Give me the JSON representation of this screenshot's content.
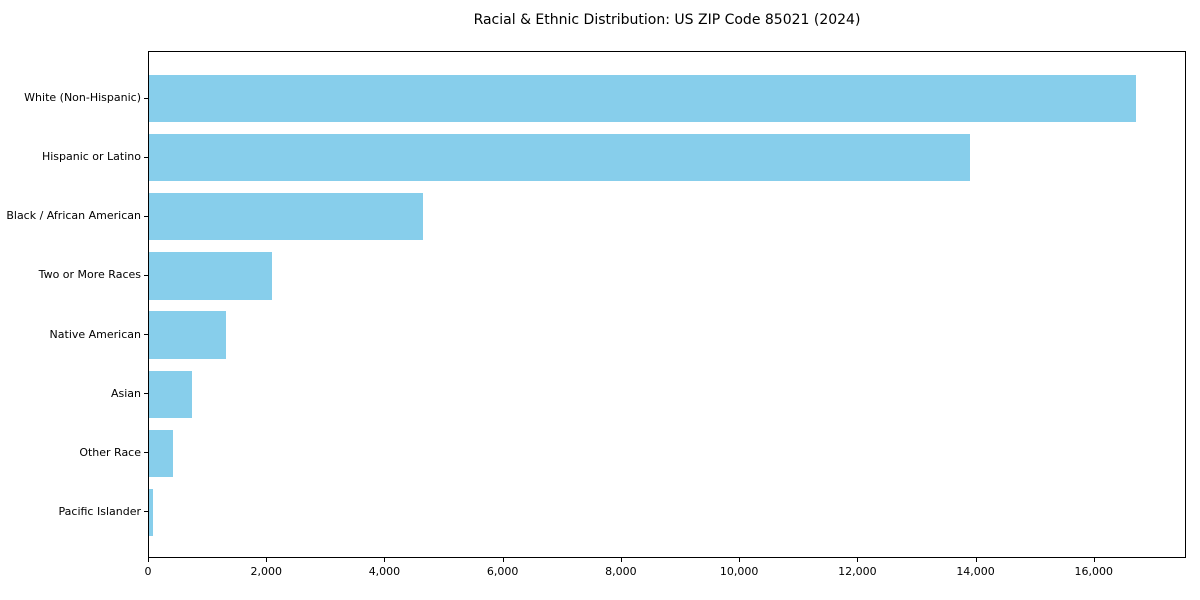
{
  "chart_data": {
    "type": "bar",
    "orientation": "horizontal",
    "title": "Racial & Ethnic Distribution: US ZIP Code 85021 (2024)",
    "xlabel": "",
    "ylabel": "",
    "grid": "off",
    "legend": "none",
    "categories": [
      "White (Non-Hispanic)",
      "Hispanic or Latino",
      "Black / African American",
      "Two or More Races",
      "Native American",
      "Asian",
      "Other Race",
      "Pacific Islander"
    ],
    "values": [
      16730,
      13910,
      4640,
      2080,
      1300,
      730,
      400,
      75
    ],
    "xlim": [
      0,
      17560
    ],
    "x_ticks": [
      {
        "value": 0,
        "label": "0"
      },
      {
        "value": 2000,
        "label": "2,000"
      },
      {
        "value": 4000,
        "label": "4,000"
      },
      {
        "value": 6000,
        "label": "6,000"
      },
      {
        "value": 8000,
        "label": "8,000"
      },
      {
        "value": 10000,
        "label": "10,000"
      },
      {
        "value": 12000,
        "label": "12,000"
      },
      {
        "value": 14000,
        "label": "14,000"
      },
      {
        "value": 16000,
        "label": "16,000"
      }
    ],
    "bar_color": "#87CEEB",
    "background_color": "#FFFFFF",
    "text_color": "#000000",
    "spine_color": "#000000"
  }
}
